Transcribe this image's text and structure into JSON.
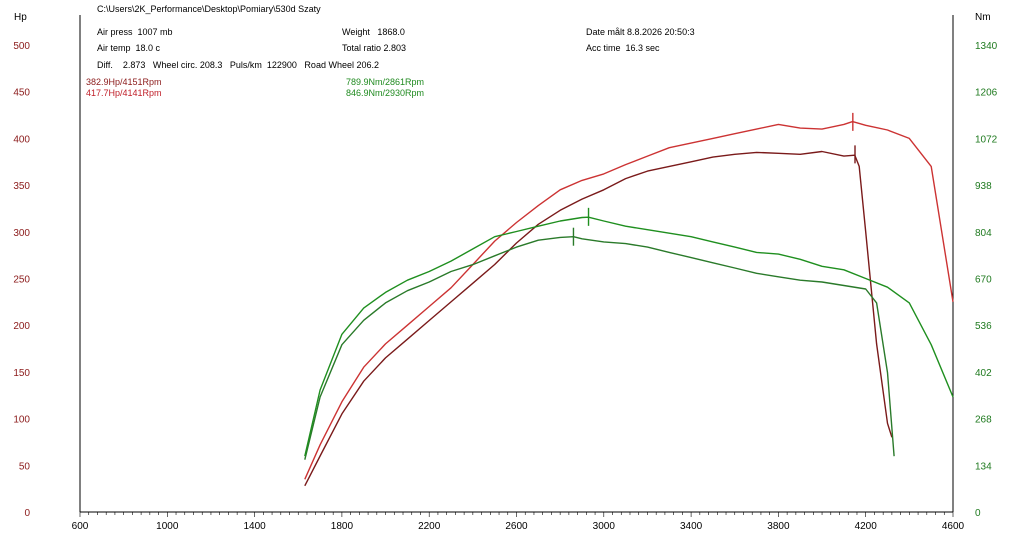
{
  "header": {
    "path": "C:\\Users\\2K_Performance\\Desktop\\Pomiary\\530d Szaty",
    "air_press": "Air press  1007 mb",
    "air_temp": "Air temp  18.0 c",
    "diff": "Diff.    2.873   Wheel circ. 208.3   Puls/km  122900   Road Wheel 206.2",
    "weight": "Weight   1868.0",
    "total_ratio": "Total ratio 2.803",
    "date": "Date målt 8.8.2026 20:50:3",
    "acc_time": "Acc time  16.3 sec"
  },
  "annotations": {
    "power_1": "382.9Hp/4151Rpm",
    "power_2": "417.7Hp/4141Rpm",
    "torque_1": "789.9Nm/2861Rpm",
    "torque_2": "846.9Nm/2930Rpm"
  },
  "colors": {
    "power_dark": "#7a1a1a",
    "power_light": "#cc3333",
    "torque_dark": "#2a7a2a",
    "torque_light": "#1f8f1f"
  },
  "chart_data": {
    "type": "line",
    "ylabel_left": "Hp",
    "ylabel_right": "Nm",
    "xlim": [
      600,
      4600
    ],
    "ylim_left": [
      0,
      500
    ],
    "ylim_right": [
      0,
      1340
    ],
    "x_ticks": [
      "600",
      "1000",
      "1400",
      "1800",
      "2200",
      "2600",
      "3000",
      "3400",
      "3800",
      "4200",
      "4600"
    ],
    "y_ticks_left": [
      "0",
      "50",
      "100",
      "150",
      "200",
      "250",
      "300",
      "350",
      "400",
      "450",
      "500"
    ],
    "y_ticks_right": [
      "0",
      "134",
      "268",
      "402",
      "536",
      "670",
      "804",
      "938",
      "1072",
      "1206",
      "1340"
    ],
    "grid": false,
    "series": [
      {
        "axis": "left",
        "color_key": "power_dark",
        "x": [
          1630,
          1700,
          1800,
          1900,
          2000,
          2100,
          2200,
          2300,
          2400,
          2500,
          2600,
          2700,
          2800,
          2900,
          3000,
          3100,
          3200,
          3300,
          3400,
          3500,
          3600,
          3700,
          3800,
          3900,
          4000,
          4100,
          4150,
          4170,
          4200,
          4250,
          4300,
          4320
        ],
        "y": [
          28,
          60,
          105,
          140,
          165,
          185,
          205,
          225,
          245,
          265,
          288,
          308,
          323,
          335,
          345,
          357,
          365,
          370,
          375,
          380,
          383,
          385,
          384,
          383,
          386,
          381,
          382,
          370,
          300,
          180,
          95,
          80
        ]
      },
      {
        "axis": "left",
        "color_key": "power_light",
        "x": [
          1630,
          1700,
          1800,
          1900,
          2000,
          2100,
          2200,
          2300,
          2400,
          2500,
          2600,
          2700,
          2800,
          2900,
          3000,
          3100,
          3200,
          3300,
          3400,
          3500,
          3600,
          3700,
          3800,
          3900,
          4000,
          4100,
          4140,
          4200,
          4300,
          4400,
          4500,
          4600
        ],
        "y": [
          35,
          72,
          118,
          155,
          180,
          200,
          220,
          240,
          265,
          290,
          310,
          328,
          345,
          355,
          362,
          372,
          381,
          390,
          395,
          400,
          405,
          410,
          415,
          411,
          410,
          415,
          418,
          414,
          409,
          400,
          370,
          225
        ]
      },
      {
        "axis": "right",
        "color_key": "torque_dark",
        "x": [
          1630,
          1700,
          1800,
          1900,
          2000,
          2100,
          2200,
          2300,
          2400,
          2500,
          2600,
          2700,
          2800,
          2861,
          2900,
          3000,
          3100,
          3200,
          3300,
          3400,
          3500,
          3600,
          3700,
          3800,
          3900,
          4000,
          4100,
          4200,
          4250,
          4300,
          4330
        ],
        "y": [
          150,
          330,
          480,
          550,
          600,
          635,
          660,
          690,
          710,
          735,
          760,
          780,
          788,
          790,
          784,
          775,
          770,
          760,
          745,
          730,
          715,
          700,
          685,
          675,
          665,
          660,
          650,
          640,
          600,
          400,
          160
        ]
      },
      {
        "axis": "right",
        "color_key": "torque_light",
        "x": [
          1630,
          1700,
          1800,
          1900,
          2000,
          2100,
          2200,
          2300,
          2400,
          2500,
          2600,
          2700,
          2800,
          2900,
          2930,
          3000,
          3100,
          3200,
          3300,
          3400,
          3500,
          3600,
          3700,
          3800,
          3900,
          4000,
          4100,
          4200,
          4300,
          4400,
          4500,
          4600
        ],
        "y": [
          160,
          350,
          510,
          585,
          630,
          665,
          690,
          720,
          755,
          790,
          805,
          820,
          835,
          845,
          846,
          835,
          820,
          810,
          800,
          790,
          775,
          760,
          745,
          740,
          725,
          705,
          695,
          670,
          645,
          600,
          480,
          330
        ]
      }
    ],
    "markers": [
      {
        "axis": "left",
        "x": 4151,
        "y": 382.9,
        "color_key": "power_dark"
      },
      {
        "axis": "left",
        "x": 4141,
        "y": 417.7,
        "color_key": "power_light"
      },
      {
        "axis": "right",
        "x": 2861,
        "y": 789.9,
        "color_key": "torque_dark"
      },
      {
        "axis": "right",
        "x": 2930,
        "y": 846.9,
        "color_key": "torque_light"
      }
    ]
  }
}
